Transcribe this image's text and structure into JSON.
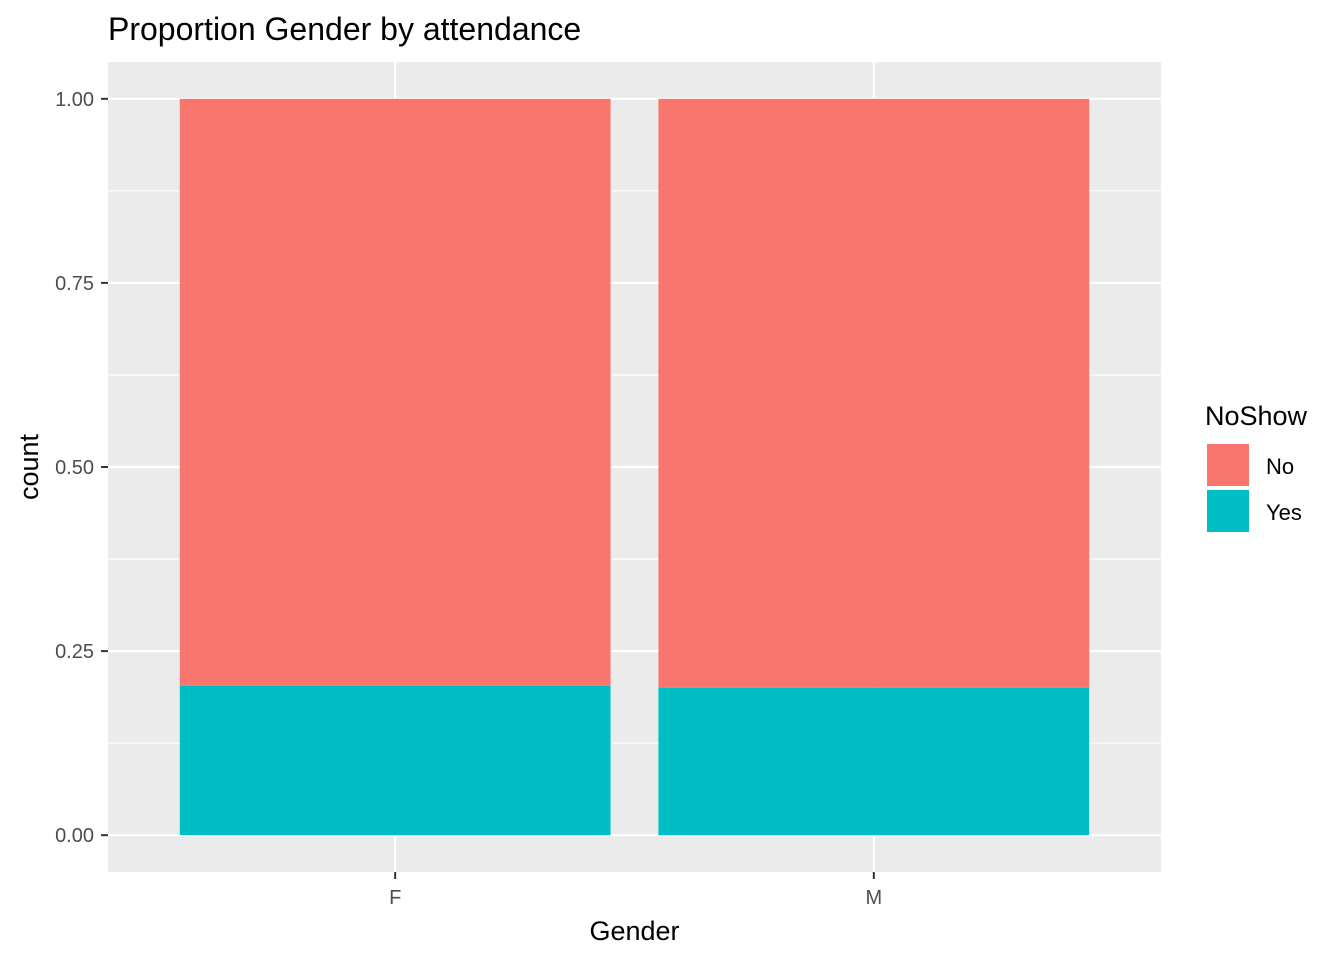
{
  "chart_data": {
    "type": "bar",
    "stacked": true,
    "title": "Proportion Gender by attendance",
    "xlabel": "Gender",
    "ylabel": "count",
    "categories": [
      "F",
      "M"
    ],
    "series": [
      {
        "name": "No",
        "values": [
          0.797,
          0.8
        ],
        "color": "#F8766D"
      },
      {
        "name": "Yes",
        "values": [
          0.203,
          0.2
        ],
        "color": "#00BFC4"
      }
    ],
    "ylim": [
      -0.05,
      1.05
    ],
    "yticks": [
      0.0,
      0.25,
      0.5,
      0.75,
      1.0
    ],
    "ytick_labels": [
      "0.00",
      "0.25",
      "0.50",
      "0.75",
      "1.00"
    ],
    "grid": true,
    "legend": {
      "title": "NoShow",
      "position": "right"
    },
    "panel_background": "#EBEBEB"
  }
}
